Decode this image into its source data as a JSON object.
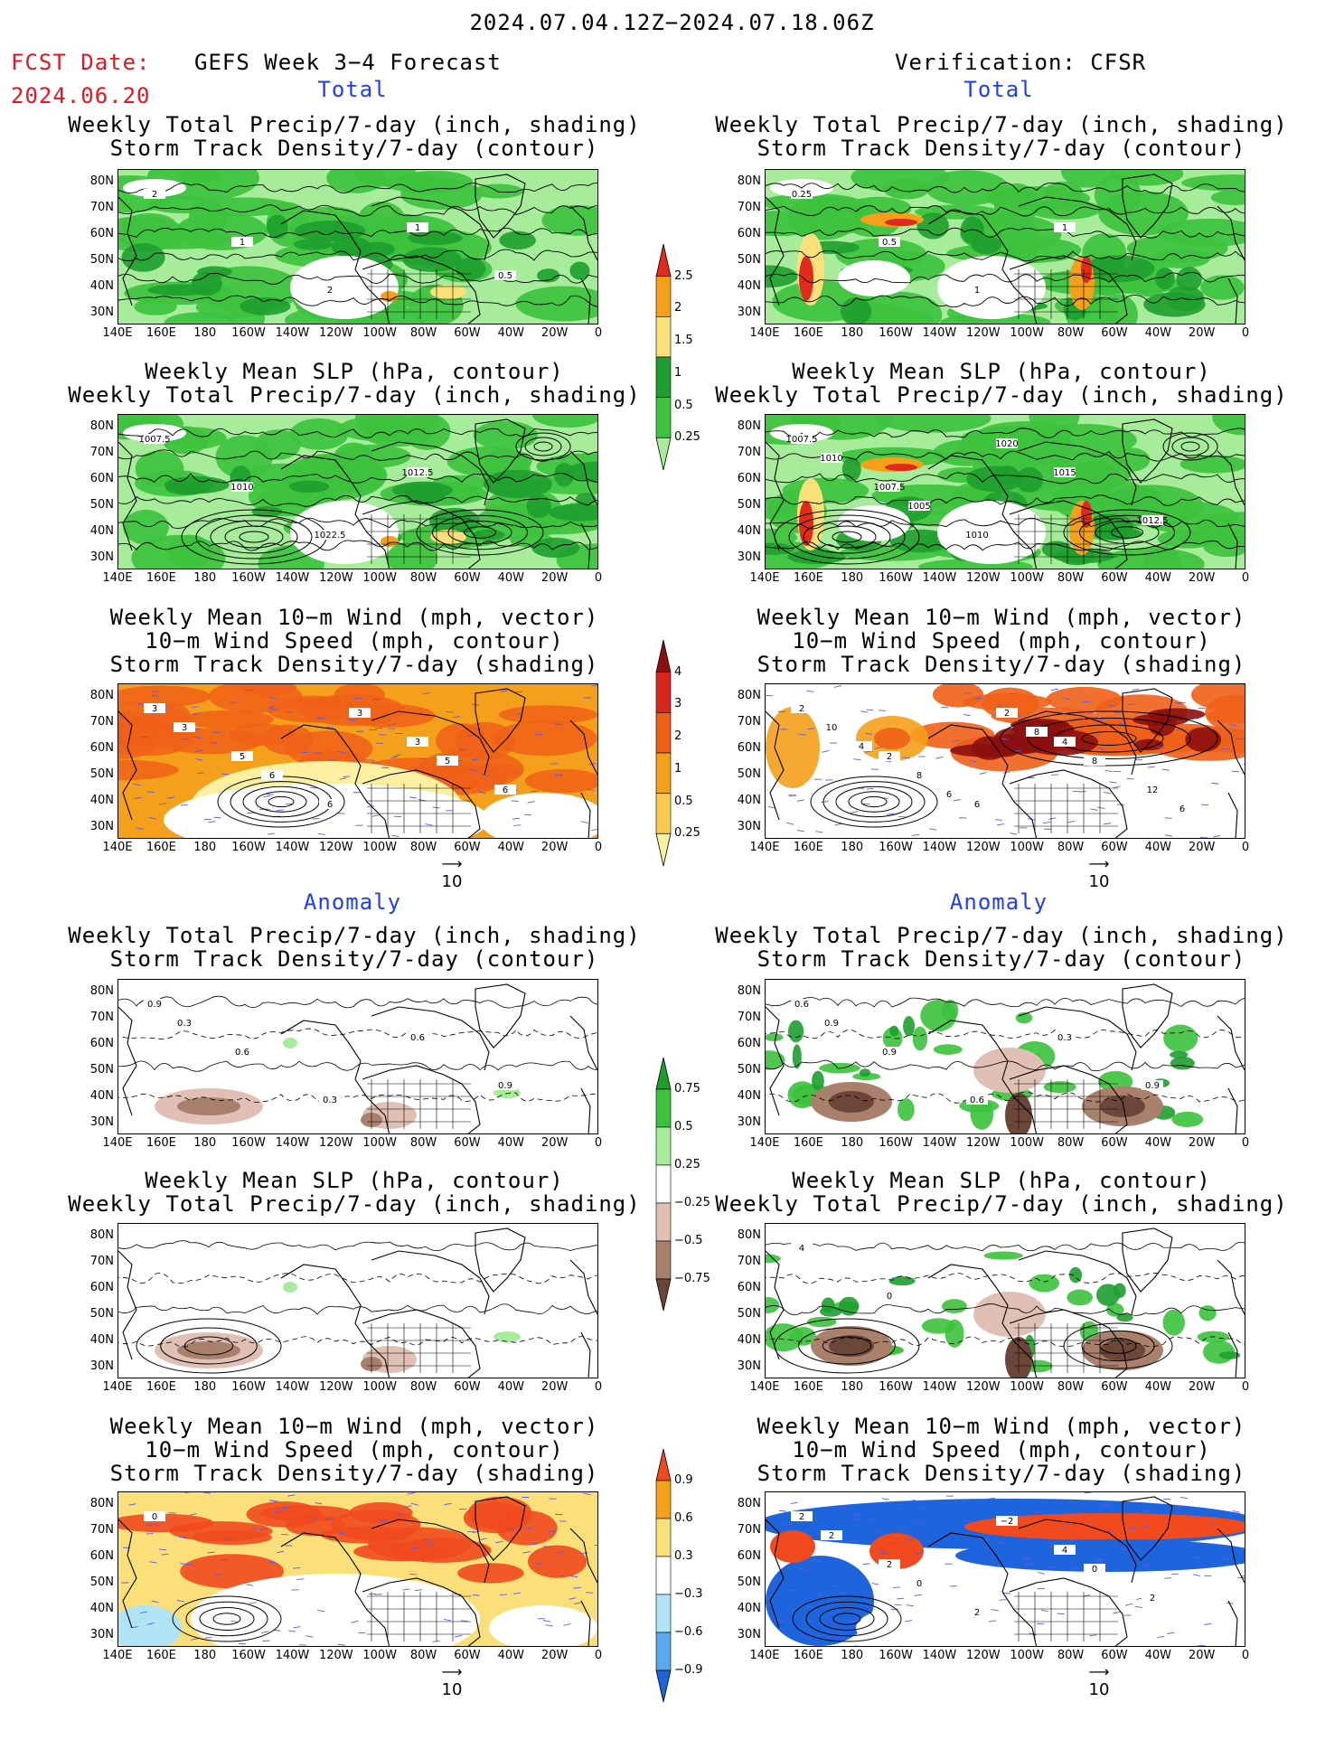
{
  "header": {
    "date_range": "2024.07.04.12Z−2024.07.18.06Z",
    "fcst_label": "FCST Date:",
    "fcst_date": "2024.06.20",
    "left_title": "GEFS Week 3−4 Forecast",
    "right_title": "Verification: CFSR"
  },
  "sections": {
    "total": "Total",
    "anomaly": "Anomaly"
  },
  "titles": {
    "precip_storm": [
      "Weekly Total Precip/7-day (inch, shading)",
      "Storm Track Density/7-day (contour)"
    ],
    "slp_precip": [
      "Weekly Mean SLP (hPa, contour)",
      "Weekly Total Precip/7-day (inch, shading)"
    ],
    "wind": [
      "Weekly Mean 10−m Wind (mph, vector)",
      "10−m Wind Speed (mph, contour)",
      "Storm Track Density/7-day (shading)"
    ]
  },
  "axes": {
    "lat_labels": [
      "80N",
      "70N",
      "60N",
      "50N",
      "40N",
      "30N"
    ],
    "lon_labels": [
      "140E",
      "160E",
      "180",
      "160W",
      "140W",
      "120W",
      "100W",
      "80W",
      "60W",
      "40W",
      "20W",
      "0"
    ]
  },
  "vector_ref": "10",
  "colorbars": {
    "precip_total": {
      "labels": [
        "2.5",
        "2",
        "1.5",
        "1",
        "0.5",
        "0.25"
      ],
      "colors": [
        "#e02a1e",
        "#f5a01a",
        "#fbe07a",
        "#1e9e2e",
        "#3cc23c",
        "#a6ec9a"
      ]
    },
    "storm_total": {
      "labels": [
        "4",
        "3",
        "2",
        "1",
        "0.5",
        "0.25"
      ],
      "colors": [
        "#8c1010",
        "#d8281e",
        "#f06018",
        "#f5a01a",
        "#fbc850",
        "#fdf0a0"
      ]
    },
    "precip_anom": {
      "labels": [
        "0.75",
        "0.5",
        "0.25",
        "−0.25",
        "−0.5",
        "−0.75"
      ],
      "colors": [
        "#1e9e2e",
        "#3cc23c",
        "#a6ec9a",
        "#ffffff",
        "#e0c0b4",
        "#a8806c",
        "#6c4638"
      ]
    },
    "storm_anom": {
      "labels": [
        "0.9",
        "0.6",
        "0.3",
        "−0.3",
        "−0.6",
        "−0.9"
      ],
      "colors": [
        "#f04a1e",
        "#f5a01a",
        "#fbe07a",
        "#ffffff",
        "#b0e4f5",
        "#5aa8ee",
        "#1e64dc"
      ]
    }
  },
  "panels": {
    "fc_precip_total": {
      "contour_labels": [
        "2",
        "1",
        "2",
        "1",
        "0.5"
      ]
    },
    "fc_slp_total": {
      "contour_labels": [
        "1007.5",
        "1010",
        "1022.5",
        "1012.5"
      ]
    },
    "fc_wind_total": {
      "contour_labels": [
        "3",
        "5",
        "6",
        "3",
        "6",
        "3",
        "6",
        "3",
        "5"
      ]
    },
    "vf_precip_total": {
      "contour_labels": [
        "0.25",
        "0.5",
        "1",
        "1"
      ]
    },
    "vf_slp_total": {
      "contour_labels": [
        "1007.5",
        "1007.5",
        "1010",
        "1015",
        "1012.5",
        "1010",
        "1005",
        "1020"
      ]
    },
    "vf_wind_total": {
      "contour_labels": [
        "2",
        "2",
        "6",
        "4",
        "12",
        "10",
        "8",
        "2",
        "8",
        "6",
        "4",
        "6",
        "8"
      ]
    },
    "fc_precip_anom": {
      "contour_labels": [
        "0.9",
        "0.6",
        "0.3",
        "0.6",
        "0.9",
        "0.3"
      ]
    },
    "fc_slp_anom": {
      "contour_labels": []
    },
    "fc_wind_anom": {
      "contour_labels": [
        "0"
      ]
    },
    "vf_precip_anom": {
      "contour_labels": [
        "0.6",
        "0.9",
        "0.6",
        "0.3",
        "0.9",
        "0.9"
      ]
    },
    "vf_slp_anom": {
      "contour_labels": [
        "4",
        "0"
      ]
    },
    "vf_wind_anom": {
      "contour_labels": [
        "2",
        "2",
        "2",
        "4",
        "2",
        "2",
        "0",
        "−2",
        "0"
      ]
    }
  }
}
